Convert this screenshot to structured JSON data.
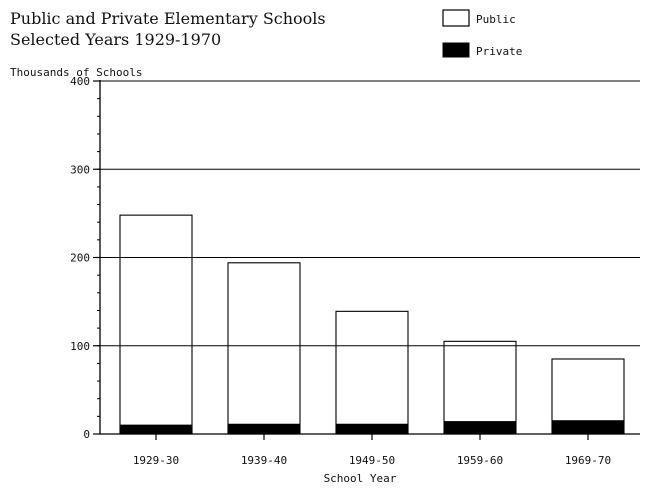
{
  "chart_data": {
    "type": "bar",
    "stacked": true,
    "title_line1": "Public and Private Elementary Schools",
    "title_line2": "Selected Years 1929-1970",
    "ylabel": "Thousands of Schools",
    "xlabel": "School Year",
    "categories": [
      "1929-30",
      "1939-40",
      "1949-50",
      "1959-60",
      "1969-70"
    ],
    "series": [
      {
        "name": "Private",
        "values": [
          10,
          11,
          11,
          14,
          15
        ],
        "color": "#000000"
      },
      {
        "name": "Public",
        "values": [
          238,
          183,
          128,
          91,
          70
        ],
        "color": "#ffffff"
      }
    ],
    "ylim": [
      0,
      400
    ],
    "yticks": [
      0,
      100,
      200,
      300,
      400
    ],
    "grid": true,
    "legend_position": "top-right"
  }
}
